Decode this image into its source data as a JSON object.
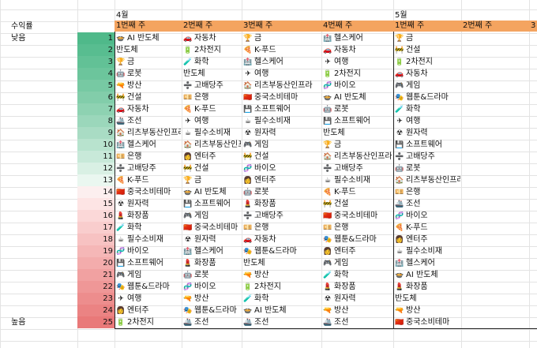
{
  "labels": {
    "returns": "수익률",
    "low": "낮음",
    "high": "높음"
  },
  "months": [
    {
      "label": "4월",
      "col": 1
    },
    {
      "label": "5월",
      "col": 5
    }
  ],
  "week_headers": [
    "1번째 주",
    "2번째 주",
    "3번째 주",
    "4번째 주",
    "1번째 주",
    "2번째 주",
    "3"
  ],
  "ranks": [
    1,
    2,
    3,
    4,
    5,
    6,
    7,
    8,
    9,
    10,
    11,
    12,
    13,
    14,
    15,
    16,
    17,
    18,
    19,
    20,
    21,
    22,
    23,
    24,
    25
  ],
  "rank_colors": [
    "#4fb98a",
    "#58bd90",
    "#62c196",
    "#6cc59c",
    "#77c9a3",
    "#82cdaa",
    "#8ed2b2",
    "#9bd7bb",
    "#a9dcc4",
    "#b8e3ce",
    "#c8e9d9",
    "#d9f0e4",
    "#eaf7f0",
    "#fcefef",
    "#fde4e4",
    "#fbd8d8",
    "#f9cdcd",
    "#f7c2c2",
    "#f5b7b7",
    "#f3acac",
    "#f1a1a1",
    "#ef9797",
    "#ed8d8d",
    "#eb8383",
    "#e97979"
  ],
  "sector_icons": {
    "AI 반도체": "🍲",
    "반도체": "",
    "금": "🏆",
    "로봇": "🤖",
    "방산": "🔫",
    "건설": "🚧",
    "자동차": "🚗",
    "조선": "🚢",
    "리츠부동산인프라": "🏠",
    "헬스케어": "🏥",
    "은행": "💴",
    "고배당주": "➗",
    "K-푸드": "🍕",
    "중국소비테마": "🇨🇳",
    "원자력": "☢",
    "화장품": "💄",
    "화학": "🧪",
    "필수소비재": "☕",
    "바이오": "🧬",
    "소프트웨어": "💾",
    "게임": "🎮",
    "웹툰&드라마": "🎭",
    "여행": "✈",
    "엔터주": "👩‍🎤",
    "엔터주2": "",
    "2차전지": "🔋"
  },
  "columns": [
    [
      "AI 반도체",
      "반도체",
      "금",
      "로봇",
      "방산",
      "건설",
      "자동차",
      "조선",
      "리츠부동산인프라",
      "헬스케어",
      "은행",
      "고배당주",
      "K-푸드",
      "중국소비테마",
      "원자력",
      "화장품",
      "화학",
      "필수소비재",
      "바이오",
      "소프트웨어",
      "게임",
      "웹툰&드라마",
      "여행",
      "엔터주",
      "2차전지"
    ],
    [
      "자동차",
      "2차전지",
      "화학",
      "반도체",
      "고배당주",
      "은행",
      "K-푸드",
      "여행",
      "필수소비재",
      "리츠부동산인프라",
      "엔터주",
      "건설",
      "금",
      "AI 반도체",
      "소프트웨어",
      "게임",
      "중국소비테마",
      "원자력",
      "헬스케어",
      "화장품",
      "로봇",
      "바이오",
      "방산",
      "웹툰&드라마",
      "조선"
    ],
    [
      "금",
      "K-푸드",
      "헬스케어",
      "여행",
      "리츠부동산인프라",
      "중국소비테마",
      "소프트웨어",
      "필수소비재",
      "원자력",
      "게임",
      "건설",
      "바이오",
      "엔터주",
      "로봇",
      "화장품",
      "고배당주",
      "은행",
      "자동차",
      "웹툰&드라마",
      "반도체",
      "방산",
      "2차전지",
      "화학",
      "AI 반도체",
      "조선"
    ],
    [
      "헬스케어",
      "자동차",
      "여행",
      "2차전지",
      "바이오",
      "AI 반도체",
      "로봇",
      "소프트웨어",
      "반도체",
      "금",
      "리츠부동산인프라",
      "고배당주",
      "필수소비재",
      "K-푸드",
      "건설",
      "중국소비테마",
      "은행",
      "웹툰&드라마",
      "엔터주",
      "게임",
      "화학",
      "화장품",
      "원자력",
      "방산",
      "조선"
    ],
    [
      "금",
      "건설",
      "2차전지",
      "자동차",
      "게임",
      "웹툰&드라마",
      "화학",
      "여행",
      "원자력",
      "소프트웨어",
      "고배당주",
      "로봇",
      "리츠부동산인프라",
      "은행",
      "조선",
      "바이오",
      "K-푸드",
      "엔터주",
      "필수소비재",
      "헬스케어",
      "AI 반도체",
      "화장품",
      "반도체",
      "방산",
      "중국소비테마"
    ]
  ]
}
